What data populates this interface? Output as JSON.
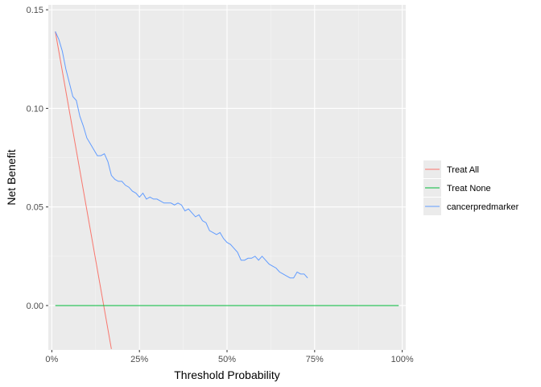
{
  "chart_data": {
    "type": "line",
    "title": "",
    "xlabel": "Threshold Probability",
    "ylabel": "Net Benefit",
    "xlim": [
      -0.01,
      1.01
    ],
    "ylim": [
      -0.0225,
      0.1525
    ],
    "x_ticks": [
      0,
      0.25,
      0.5,
      0.75,
      1.0
    ],
    "x_tick_labels": [
      "0%",
      "25%",
      "50%",
      "75%",
      "100%"
    ],
    "y_ticks": [
      0.0,
      0.05,
      0.1,
      0.15
    ],
    "y_tick_labels": [
      "0.00",
      "0.05",
      "0.10",
      "0.15"
    ],
    "grid": true,
    "legend_position": "right",
    "series": [
      {
        "name": "Treat All",
        "color": "#F8766D",
        "points": [
          [
            0.01,
            0.139
          ],
          [
            0.17,
            -0.022
          ]
        ]
      },
      {
        "name": "Treat None",
        "color": "#00BA38",
        "points": [
          [
            0.01,
            0.0
          ],
          [
            0.99,
            0.0
          ]
        ]
      },
      {
        "name": "cancerpredmarker",
        "color": "#619CFF",
        "points": [
          [
            0.01,
            0.139
          ],
          [
            0.02,
            0.135
          ],
          [
            0.03,
            0.129
          ],
          [
            0.04,
            0.12
          ],
          [
            0.05,
            0.113
          ],
          [
            0.06,
            0.106
          ],
          [
            0.07,
            0.104
          ],
          [
            0.08,
            0.096
          ],
          [
            0.09,
            0.091
          ],
          [
            0.1,
            0.085
          ],
          [
            0.11,
            0.082
          ],
          [
            0.12,
            0.079
          ],
          [
            0.13,
            0.076
          ],
          [
            0.14,
            0.076
          ],
          [
            0.15,
            0.077
          ],
          [
            0.16,
            0.073
          ],
          [
            0.17,
            0.066
          ],
          [
            0.18,
            0.064
          ],
          [
            0.19,
            0.063
          ],
          [
            0.2,
            0.063
          ],
          [
            0.21,
            0.061
          ],
          [
            0.22,
            0.06
          ],
          [
            0.23,
            0.058
          ],
          [
            0.24,
            0.057
          ],
          [
            0.25,
            0.055
          ],
          [
            0.26,
            0.057
          ],
          [
            0.27,
            0.054
          ],
          [
            0.28,
            0.055
          ],
          [
            0.29,
            0.054
          ],
          [
            0.3,
            0.054
          ],
          [
            0.31,
            0.053
          ],
          [
            0.32,
            0.052
          ],
          [
            0.33,
            0.052
          ],
          [
            0.34,
            0.052
          ],
          [
            0.35,
            0.051
          ],
          [
            0.36,
            0.052
          ],
          [
            0.37,
            0.051
          ],
          [
            0.38,
            0.048
          ],
          [
            0.39,
            0.049
          ],
          [
            0.4,
            0.047
          ],
          [
            0.41,
            0.045
          ],
          [
            0.42,
            0.046
          ],
          [
            0.43,
            0.043
          ],
          [
            0.44,
            0.042
          ],
          [
            0.45,
            0.038
          ],
          [
            0.46,
            0.037
          ],
          [
            0.47,
            0.036
          ],
          [
            0.48,
            0.037
          ],
          [
            0.49,
            0.034
          ],
          [
            0.5,
            0.032
          ],
          [
            0.51,
            0.031
          ],
          [
            0.52,
            0.029
          ],
          [
            0.53,
            0.027
          ],
          [
            0.54,
            0.023
          ],
          [
            0.55,
            0.023
          ],
          [
            0.56,
            0.024
          ],
          [
            0.57,
            0.024
          ],
          [
            0.58,
            0.025
          ],
          [
            0.59,
            0.023
          ],
          [
            0.6,
            0.025
          ],
          [
            0.61,
            0.023
          ],
          [
            0.62,
            0.021
          ],
          [
            0.63,
            0.02
          ],
          [
            0.64,
            0.019
          ],
          [
            0.65,
            0.017
          ],
          [
            0.66,
            0.016
          ],
          [
            0.67,
            0.015
          ],
          [
            0.68,
            0.014
          ],
          [
            0.69,
            0.014
          ],
          [
            0.7,
            0.017
          ],
          [
            0.71,
            0.016
          ],
          [
            0.72,
            0.016
          ],
          [
            0.73,
            0.014
          ]
        ]
      }
    ]
  }
}
